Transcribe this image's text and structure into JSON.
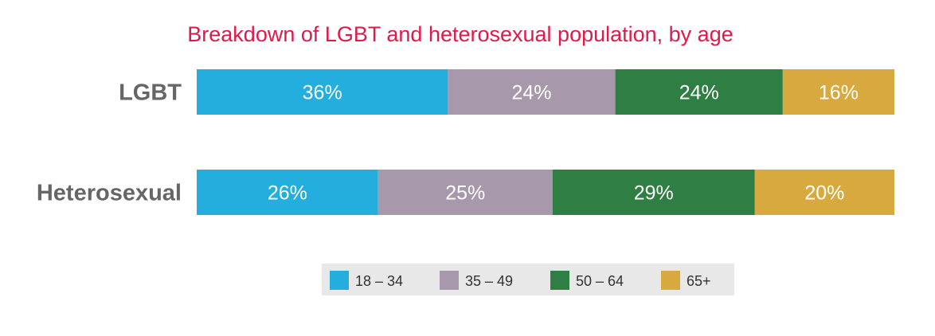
{
  "chart_data": {
    "type": "bar",
    "stacked": true,
    "orientation": "horizontal",
    "percent_stacked": true,
    "title": "Breakdown of LGBT and heterosexual population, by age",
    "categories": [
      "LGBT",
      "Heterosexual"
    ],
    "series": [
      {
        "name": "18 – 34",
        "values": [
          36,
          26
        ],
        "labels": [
          "36%",
          "26%"
        ]
      },
      {
        "name": "35 – 49",
        "values": [
          24,
          25
        ],
        "labels": [
          "24%",
          "25%"
        ]
      },
      {
        "name": "50 – 64",
        "values": [
          24,
          29
        ],
        "labels": [
          "24%",
          "29%"
        ]
      },
      {
        "name": "65+",
        "values": [
          16,
          20
        ],
        "labels": [
          "16%",
          "20%"
        ]
      }
    ],
    "xlim": [
      0,
      100
    ],
    "grid": false,
    "legend_position": "bottom"
  },
  "colors": {
    "title": "#e0194a",
    "category_label": "#666666",
    "data_label": "#ffffff",
    "legend_text": "#333333",
    "legend_background": "#e8e8e8",
    "series": [
      "#24aedd",
      "#a898ab",
      "#2f7f45",
      "#d8a93e"
    ]
  }
}
